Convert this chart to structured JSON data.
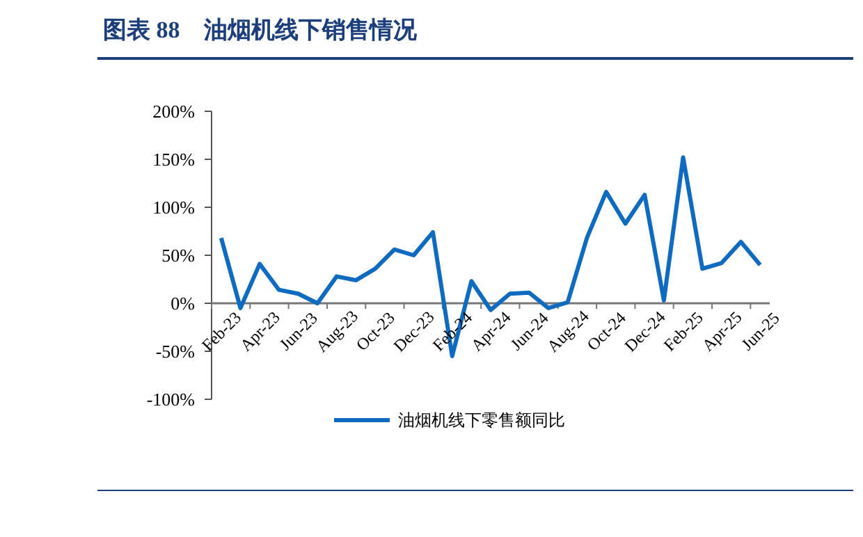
{
  "chart_data": {
    "type": "line",
    "title": "图表 88　油烟机线下销售情况",
    "categories": [
      "Feb-23",
      null,
      "Apr-23",
      null,
      "Jun-23",
      null,
      "Aug-23",
      null,
      "Oct-23",
      null,
      "Dec-23",
      null,
      "Feb-24",
      null,
      "Apr-24",
      null,
      "Jun-24",
      null,
      "Aug-24",
      null,
      "Oct-24",
      null,
      "Dec-24",
      null,
      "Feb-25",
      null,
      "Apr-25",
      null,
      "Jun-25"
    ],
    "series": [
      {
        "name": "油烟机线下零售额同比",
        "color": "#0e6bbf",
        "values": [
          68,
          -5,
          41,
          14,
          10,
          0,
          28,
          24,
          36,
          56,
          50,
          74,
          -55,
          23,
          -7,
          10,
          11,
          -5,
          1,
          68,
          116,
          83,
          113,
          3,
          152,
          36,
          42,
          64,
          40
        ]
      }
    ],
    "ylim": [
      -100,
      200
    ],
    "yticks": [
      {
        "value": -100,
        "label": "-100%"
      },
      {
        "value": -50,
        "label": "-50%"
      },
      {
        "value": 0,
        "label": "0%"
      },
      {
        "value": 50,
        "label": "50%"
      },
      {
        "value": 100,
        "label": "100%"
      },
      {
        "value": 150,
        "label": "150%"
      },
      {
        "value": 200,
        "label": "200%"
      }
    ],
    "grid": false,
    "legend": "bottom",
    "marker": "none",
    "line_style": "solid"
  }
}
